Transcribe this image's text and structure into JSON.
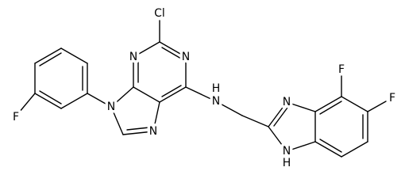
{
  "atom_labels": [
    "Cl",
    "N",
    "N",
    "N",
    "N",
    "N",
    "H",
    "F",
    "N",
    "N",
    "H",
    "F",
    "F"
  ]
}
